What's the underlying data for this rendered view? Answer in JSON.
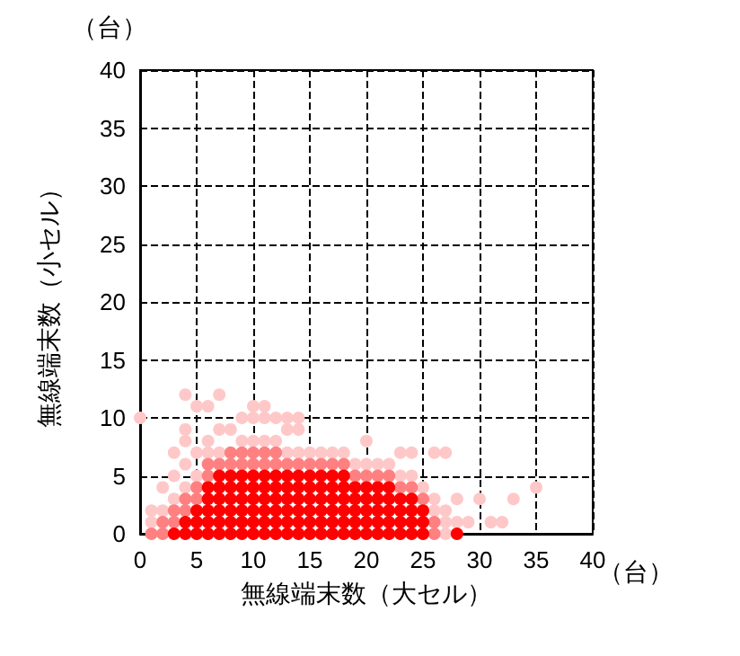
{
  "chart_data": {
    "type": "scatter",
    "xlabel": "無線端末数（大セル）",
    "ylabel": "無線端末数（小セル）",
    "annotations": [
      "（台）",
      "（台）"
    ],
    "xlim": [
      0,
      40
    ],
    "ylim": [
      0,
      40
    ],
    "xticks": [
      0,
      5,
      10,
      15,
      20,
      25,
      30,
      35,
      40
    ],
    "yticks": [
      0,
      5,
      10,
      15,
      20,
      25,
      30,
      35,
      40
    ],
    "grid": true,
    "marker": "circle",
    "series": [
      {
        "color": "#ffc8c8",
        "x": [
          0,
          1,
          1,
          2,
          2,
          3,
          3,
          3,
          4,
          4,
          4,
          4,
          4,
          5,
          5,
          5,
          6,
          6,
          6,
          7,
          7,
          7,
          8,
          9,
          9,
          10,
          10,
          10,
          11,
          11,
          11,
          12,
          12,
          13,
          13,
          13,
          14,
          14,
          14,
          15,
          16,
          17,
          18,
          19,
          20,
          20,
          21,
          22,
          23,
          23,
          24,
          24,
          25,
          26,
          26,
          26,
          27,
          27,
          27,
          27,
          28,
          28,
          29,
          30,
          31,
          32,
          33,
          35
        ],
        "values": [
          10,
          1,
          2,
          2,
          4,
          3,
          5,
          7,
          4,
          6,
          8,
          9,
          12,
          5,
          7,
          11,
          7,
          8,
          11,
          7,
          9,
          12,
          9,
          8,
          10,
          8,
          10,
          11,
          8,
          10,
          11,
          8,
          10,
          7,
          9,
          10,
          7,
          9,
          10,
          7,
          7,
          7,
          7,
          6,
          6,
          8,
          6,
          6,
          5,
          7,
          5,
          7,
          4,
          2,
          3,
          7,
          0,
          1,
          2,
          7,
          1,
          3,
          1,
          3,
          1,
          1,
          3,
          4
        ]
      },
      {
        "color": "#ff8080",
        "x": [
          1,
          2,
          2,
          3,
          3,
          4,
          4,
          5,
          5,
          6,
          6,
          7,
          8,
          8,
          9,
          9,
          10,
          10,
          11,
          11,
          12,
          12,
          13,
          14,
          15,
          16,
          17,
          18,
          19,
          20,
          21,
          22,
          23,
          24,
          25,
          26,
          26
        ],
        "values": [
          0,
          0,
          1,
          1,
          2,
          2,
          3,
          3,
          4,
          5,
          6,
          6,
          6,
          7,
          6,
          7,
          6,
          7,
          6,
          7,
          6,
          7,
          6,
          6,
          6,
          6,
          6,
          6,
          5,
          5,
          5,
          5,
          4,
          4,
          3,
          0,
          1
        ]
      },
      {
        "color": "#ff0000",
        "x": [
          3,
          4,
          4,
          5,
          5,
          5,
          6,
          6,
          6,
          6,
          6,
          7,
          7,
          7,
          7,
          7,
          7,
          8,
          8,
          8,
          8,
          8,
          8,
          9,
          9,
          9,
          9,
          9,
          9,
          10,
          10,
          10,
          10,
          10,
          10,
          11,
          11,
          11,
          11,
          11,
          11,
          12,
          12,
          12,
          12,
          12,
          12,
          13,
          13,
          13,
          13,
          13,
          13,
          14,
          14,
          14,
          14,
          14,
          14,
          15,
          15,
          15,
          15,
          15,
          15,
          16,
          16,
          16,
          16,
          16,
          16,
          17,
          17,
          17,
          17,
          17,
          17,
          18,
          18,
          18,
          18,
          18,
          18,
          19,
          19,
          19,
          19,
          19,
          20,
          20,
          20,
          20,
          20,
          21,
          21,
          21,
          21,
          21,
          22,
          22,
          22,
          22,
          22,
          23,
          23,
          23,
          23,
          24,
          24,
          24,
          24,
          25,
          25,
          25,
          28
        ],
        "values": [
          0,
          0,
          1,
          0,
          1,
          2,
          0,
          1,
          2,
          3,
          4,
          0,
          1,
          2,
          3,
          4,
          5,
          0,
          1,
          2,
          3,
          4,
          5,
          0,
          1,
          2,
          3,
          4,
          5,
          0,
          1,
          2,
          3,
          4,
          5,
          0,
          1,
          2,
          3,
          4,
          5,
          0,
          1,
          2,
          3,
          4,
          5,
          0,
          1,
          2,
          3,
          4,
          5,
          0,
          1,
          2,
          3,
          4,
          5,
          0,
          1,
          2,
          3,
          4,
          5,
          0,
          1,
          2,
          3,
          4,
          5,
          0,
          1,
          2,
          3,
          4,
          5,
          0,
          1,
          2,
          3,
          4,
          5,
          0,
          1,
          2,
          3,
          4,
          0,
          1,
          2,
          3,
          4,
          0,
          1,
          2,
          3,
          4,
          0,
          1,
          2,
          3,
          4,
          0,
          1,
          2,
          3,
          0,
          1,
          2,
          3,
          0,
          1,
          2,
          0
        ]
      }
    ]
  }
}
